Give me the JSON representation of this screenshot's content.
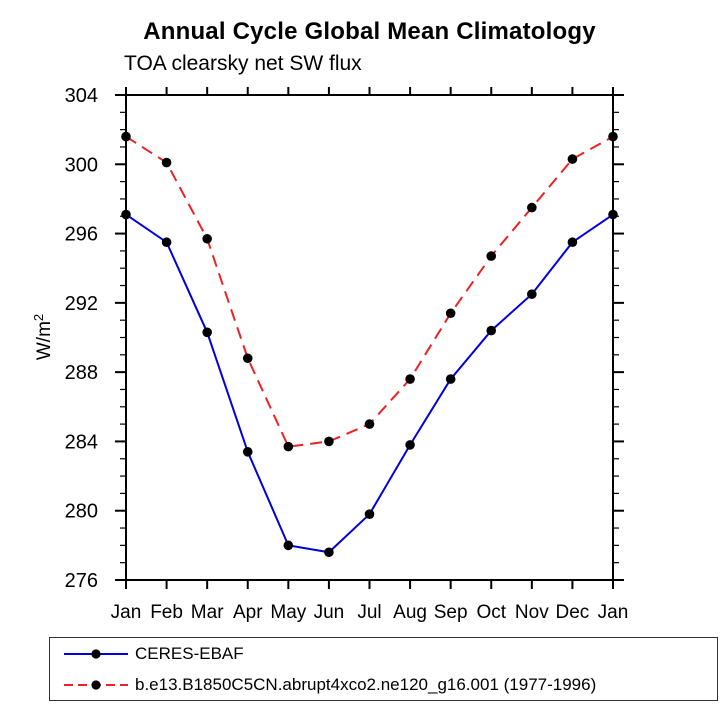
{
  "page": {
    "background": "#ffffff"
  },
  "chart_data": {
    "type": "line",
    "title": "Annual Cycle Global Mean Climatology",
    "subtitle": "TOA clearsky net SW flux",
    "ylabel": {
      "base": "W/m",
      "sup": "2"
    },
    "categories": [
      "Jan",
      "Feb",
      "Mar",
      "Apr",
      "May",
      "Jun",
      "Jul",
      "Aug",
      "Sep",
      "Oct",
      "Nov",
      "Dec",
      "Jan"
    ],
    "ylim": [
      276,
      304
    ],
    "ytick_major_step": 4,
    "ytick_minor_step": 1,
    "grid": false,
    "legend_position": "bottom-left-box",
    "axis_color": "#000000",
    "marker": {
      "shape": "circle",
      "color": "#000000",
      "radius": 4.8
    },
    "series": [
      {
        "name": "CERES-EBAF",
        "color": "#0000dd",
        "line_style": "solid",
        "values": [
          297.1,
          295.5,
          290.3,
          283.4,
          278.0,
          277.6,
          279.8,
          283.8,
          287.6,
          290.4,
          292.5,
          295.5,
          297.1
        ]
      },
      {
        "name": "b.e13.B1850C5CN.abrupt4xco2.ne120_g16.001 (1977-1996)",
        "color": "#ee2222",
        "line_style": "dashed",
        "values": [
          301.6,
          300.1,
          295.7,
          288.8,
          283.7,
          284.0,
          285.0,
          287.6,
          291.4,
          294.7,
          297.5,
          300.3,
          301.6
        ]
      }
    ]
  }
}
